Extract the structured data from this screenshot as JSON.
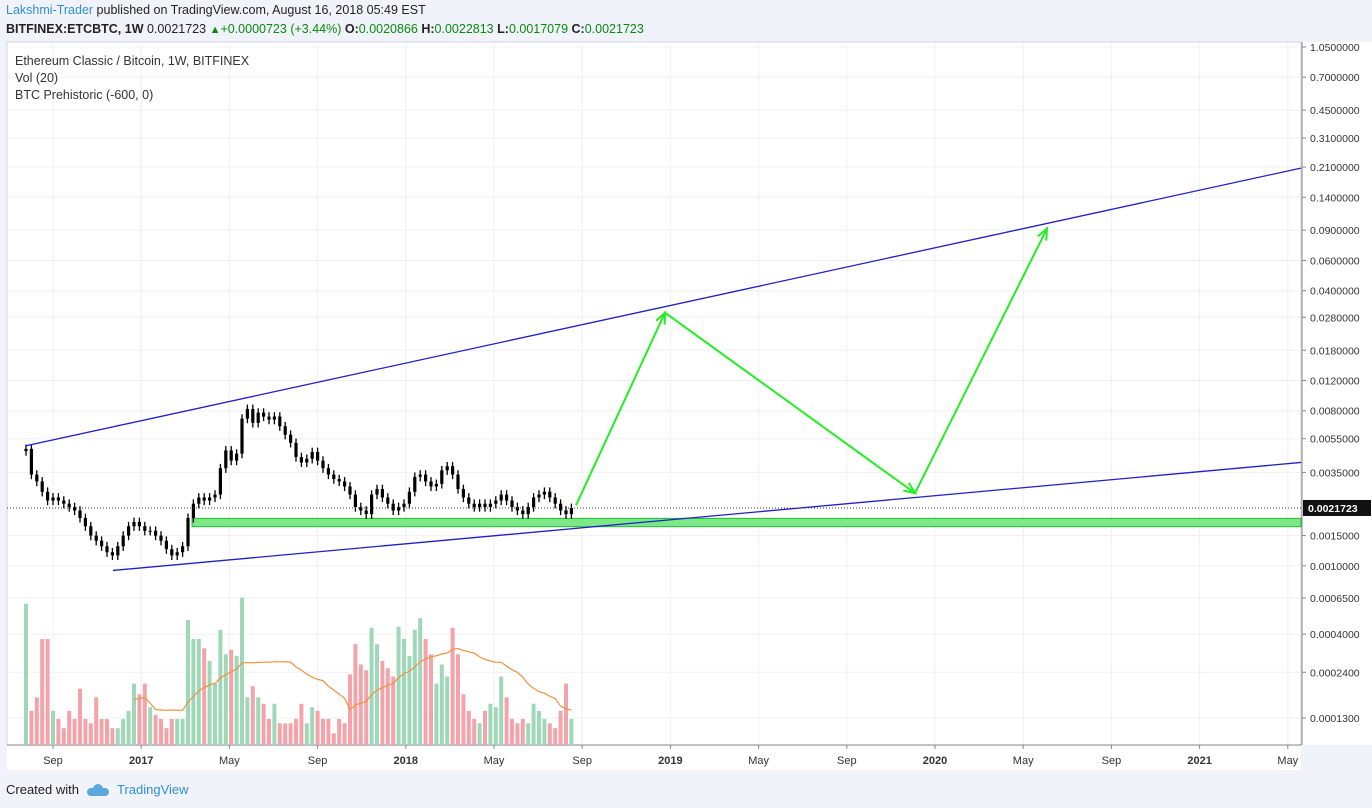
{
  "header": {
    "author": "Lakshmi-Trader",
    "published_text": "published on TradingView.com, August 16, 2018 05:49 EST",
    "symbol": "BITFINEX:ETCBTC, 1W",
    "last": "0.0021723",
    "change": "+0.0000723 (+3.44%)",
    "open_label": "O:",
    "open": "0.0020866",
    "high_label": "H:",
    "high": "0.0022813",
    "low_label": "L:",
    "low": "0.0017079",
    "close_label": "C:",
    "close": "0.0021723"
  },
  "legend": {
    "title": "Ethereum Classic / Bitcoin, 1W, BITFINEX",
    "vol": "Vol (20)",
    "indicator": "BTC Prehistoric (-600, 0)"
  },
  "footer": {
    "created_with": "Created with",
    "brand": "TradingView"
  },
  "colors": {
    "up": "#26a69a",
    "down": "#ef5350",
    "vol_up": "#9fd8b9",
    "vol_down": "#f4a3ab",
    "trend": "#1f1fc8",
    "arrow": "#22ee22",
    "zone": "#7de886",
    "ma": "#f0913c"
  },
  "chart_data": {
    "type": "candlestick",
    "title": "Ethereum Classic / Bitcoin, 1W, BITFINEX",
    "scale": "log",
    "y_ticks": [
      "1.0500000",
      "0.7000000",
      "0.4500000",
      "0.3100000",
      "0.2100000",
      "0.1400000",
      "0.0900000",
      "0.0600000",
      "0.0400000",
      "0.0280000",
      "0.0180000",
      "0.0120000",
      "0.0080000",
      "0.0055000",
      "0.0035000",
      "0.0015000",
      "0.0010000",
      "0.0006500",
      "0.0004000",
      "0.0002400",
      "0.0001300"
    ],
    "y_tick_values": [
      1.05,
      0.7,
      0.45,
      0.31,
      0.21,
      0.14,
      0.09,
      0.06,
      0.04,
      0.028,
      0.018,
      0.012,
      0.008,
      0.0055,
      0.0035,
      0.0015,
      0.001,
      0.00065,
      0.0004,
      0.00024,
      0.00013
    ],
    "x_ticks": [
      "Sep",
      "2017",
      "May",
      "Sep",
      "2018",
      "May",
      "Sep",
      "2019",
      "May",
      "Sep",
      "2020",
      "May",
      "Sep",
      "2021",
      "May"
    ],
    "current_price": "0.0021723",
    "closes": [
      0.0048,
      0.0034,
      0.0031,
      0.0027,
      0.0024,
      0.0025,
      0.0024,
      0.0023,
      0.0022,
      0.0021,
      0.0019,
      0.0017,
      0.0015,
      0.0014,
      0.0013,
      0.0012,
      0.00115,
      0.0013,
      0.0015,
      0.0017,
      0.0018,
      0.0017,
      0.0016,
      0.0016,
      0.0015,
      0.0014,
      0.00125,
      0.00115,
      0.0012,
      0.0013,
      0.0019,
      0.0023,
      0.0025,
      0.0024,
      0.0025,
      0.0026,
      0.0037,
      0.0047,
      0.0041,
      0.0045,
      0.0072,
      0.0082,
      0.0068,
      0.0078,
      0.0074,
      0.0071,
      0.0074,
      0.0065,
      0.0058,
      0.0052,
      0.0043,
      0.004,
      0.0042,
      0.0046,
      0.0041,
      0.0037,
      0.0034,
      0.0032,
      0.0031,
      0.0029,
      0.0026,
      0.0022,
      0.0021,
      0.002,
      0.0026,
      0.0028,
      0.0025,
      0.0023,
      0.0021,
      0.0022,
      0.0023,
      0.0027,
      0.0033,
      0.0034,
      0.0031,
      0.0029,
      0.003,
      0.0036,
      0.0038,
      0.0034,
      0.0028,
      0.0025,
      0.0023,
      0.0022,
      0.0023,
      0.0022,
      0.0023,
      0.0024,
      0.0026,
      0.0024,
      0.0022,
      0.0021,
      0.002,
      0.0022,
      0.0025,
      0.0026,
      0.0027,
      0.0025,
      0.0023,
      0.0021,
      0.002,
      0.0021723
    ],
    "volume_scale": {
      "min": 0.0001,
      "max": 0.001
    },
    "volumes": [
      0.0009,
      0.00017,
      0.00021,
      0.00052,
      0.00052,
      0.00017,
      0.00015,
      0.00013,
      0.00017,
      0.00015,
      0.00024,
      0.00015,
      0.00014,
      0.00021,
      0.00015,
      0.00015,
      0.00013,
      0.00013,
      0.00015,
      0.00017,
      0.00026,
      0.00022,
      0.00026,
      0.00018,
      0.00016,
      0.00015,
      0.00013,
      0.00015,
      0.00015,
      0.00015,
      0.0007,
      0.00052,
      0.00052,
      0.00045,
      0.00037,
      0.00026,
      0.0006,
      0.00041,
      0.00044,
      0.0004,
      0.00099,
      0.00021,
      0.00025,
      0.00021,
      0.00019,
      0.00015,
      0.00019,
      0.00014,
      0.00014,
      0.00014,
      0.00015,
      0.00019,
      0.00014,
      0.00018,
      0.00017,
      0.00015,
      0.00015,
      0.00012,
      0.00015,
      0.00014,
      0.0003,
      0.00048,
      0.00035,
      0.00032,
      0.00062,
      0.00048,
      0.00037,
      0.00033,
      0.00029,
      0.00063,
      0.00052,
      0.0004,
      0.0006,
      0.00072,
      0.00052,
      0.00041,
      0.00026,
      0.00035,
      0.00029,
      0.00062,
      0.00041,
      0.00022,
      0.00017,
      0.00015,
      0.00014,
      0.00017,
      0.00019,
      0.00018,
      0.00029,
      0.00021,
      0.00015,
      0.00014,
      0.00015,
      0.00014,
      0.00019,
      0.00017,
      0.00015,
      0.00014,
      0.00013,
      0.00017,
      0.00026,
      0.00015
    ],
    "volume_ma_window": 20
  }
}
